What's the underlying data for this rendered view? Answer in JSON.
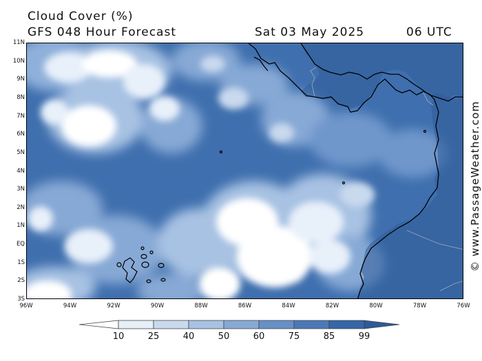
{
  "header": {
    "title": "Cloud Cover (%)",
    "subtitle": "GFS 048 Hour Forecast",
    "date": "Sat 03 May 2025",
    "time": "06 UTC"
  },
  "credit": "© www.PassageWeather.com",
  "map": {
    "lon_range": [
      -96,
      -76
    ],
    "lat_range": [
      -3,
      11
    ],
    "lat_ticks": [
      "11N",
      "10N",
      "9N",
      "8N",
      "7N",
      "6N",
      "5N",
      "4N",
      "3N",
      "2N",
      "1N",
      "EQ",
      "1S",
      "2S",
      "3S"
    ],
    "lon_ticks": [
      "96W",
      "94W",
      "92W",
      "90W",
      "88W",
      "86W",
      "84W",
      "82W",
      "80W",
      "78W",
      "76W"
    ],
    "background_color": "#3f6fae",
    "land_color": "#2f5d99",
    "coast_color": "#000000",
    "border_color": "#9aa6b5"
  },
  "legend": {
    "labels": [
      "10",
      "25",
      "40",
      "50",
      "60",
      "75",
      "85",
      "99"
    ],
    "colors": [
      "#ffffff",
      "#e6eef8",
      "#c9d9ee",
      "#a8c2e3",
      "#87a9d5",
      "#6690c6",
      "#4b79b8",
      "#3566a8",
      "#2e5a98"
    ]
  }
}
